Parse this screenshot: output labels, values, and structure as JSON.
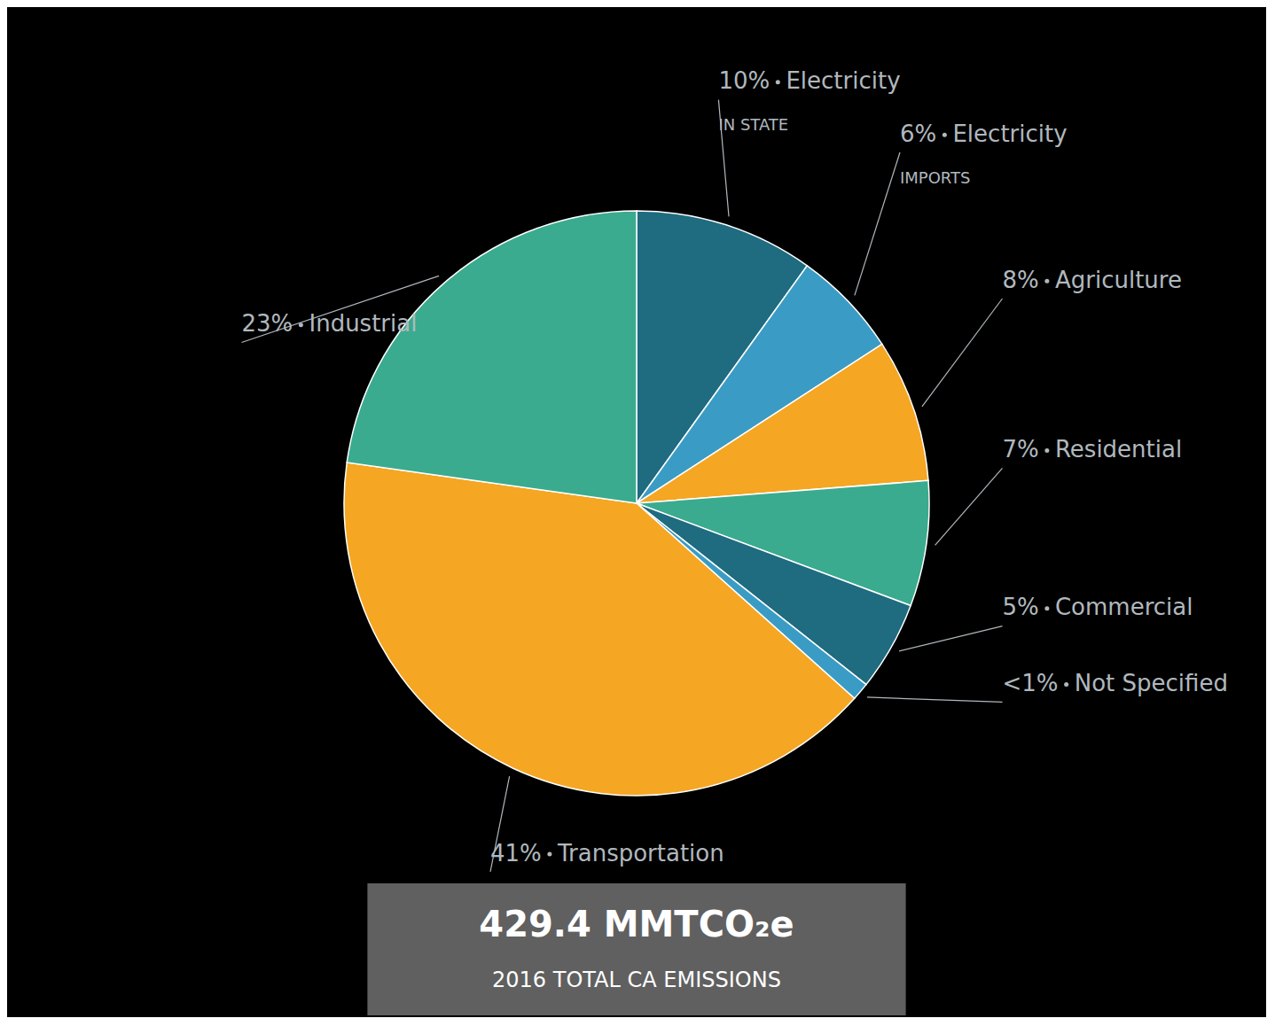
{
  "chart_data": {
    "type": "pie",
    "categories": [
      "Electricity",
      "Electricity",
      "Agriculture",
      "Residential",
      "Commercial",
      "Not Specified",
      "Transportation",
      "Industrial"
    ],
    "values": [
      10,
      6,
      8,
      7,
      5,
      1,
      41,
      23
    ],
    "value_labels": [
      "10%",
      "6%",
      "8%",
      "7%",
      "5%",
      "<1%",
      "41%",
      "23%"
    ],
    "sublabels": [
      "IN STATE",
      "IMPORTS",
      null,
      null,
      null,
      null,
      null,
      null
    ],
    "colors": [
      "#1f6b80",
      "#3a9cc4",
      "#f5a623",
      "#3aab8e",
      "#1f6b80",
      "#3a9cc4",
      "#f5a623",
      "#3aab8e"
    ],
    "annotations": [
      "429.4 MMTCO₂e",
      "2016 TOTAL CA EMISSIONS"
    ]
  }
}
